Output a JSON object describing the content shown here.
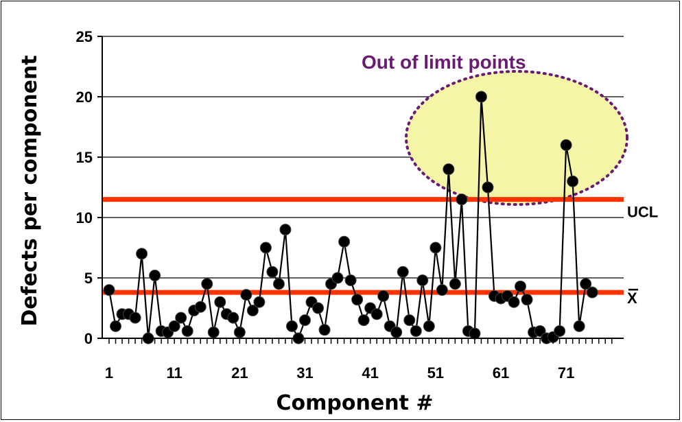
{
  "chart_data": {
    "type": "line",
    "xlabel": "Component #",
    "ylabel": "Defects per component",
    "xlim": [
      1,
      78
    ],
    "ylim": [
      0,
      25
    ],
    "x_ticks": [
      1,
      11,
      21,
      31,
      41,
      51,
      61,
      71
    ],
    "y_ticks": [
      0,
      5,
      10,
      15,
      20,
      25
    ],
    "grid": "horizontal",
    "series": [
      {
        "values": [
          4,
          1,
          2,
          2,
          1.7,
          7,
          0,
          5.2,
          0.6,
          0.5,
          1,
          1.7,
          0.6,
          2.3,
          2.6,
          4.5,
          0.5,
          3,
          2,
          1.7,
          0.5,
          3.6,
          2.3,
          3,
          7.5,
          5.5,
          4.5,
          9,
          1,
          0,
          1.5,
          3,
          2.5,
          0.7,
          4.5,
          5,
          8,
          4.8,
          3.2,
          1.5,
          2.5,
          2,
          3.5,
          1,
          0.5,
          5.5,
          1.5,
          0.6,
          4.8,
          1,
          7.5,
          4,
          14,
          4.5,
          11.5,
          0.6,
          0.4,
          20,
          12.5,
          3.5,
          3.3,
          3.5,
          3,
          4.3,
          3.2,
          0.5,
          0.6,
          0,
          0.1,
          0.6,
          16,
          13,
          1,
          4.5,
          3.8
        ],
        "color": "#000000"
      }
    ],
    "reference_lines": [
      {
        "label": "UCL",
        "value": 11.5,
        "color": "#ff3300"
      },
      {
        "label": "X",
        "value": 3.8,
        "color": "#ff3300"
      }
    ],
    "annotation": {
      "text": "Out of limit points",
      "color": "#6a1a72",
      "highlight_color": "#f5f5a8"
    }
  }
}
